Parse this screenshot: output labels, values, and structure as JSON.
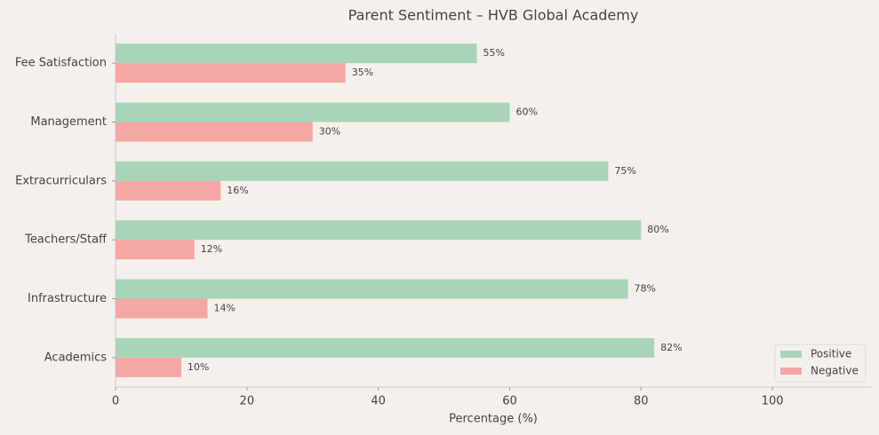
{
  "chart_data": {
    "type": "barh",
    "title": "Parent Sentiment – HVB Global Academy",
    "xlabel": "Percentage (%)",
    "categories": [
      "Academics",
      "Infrastructure",
      "Teachers/Staff",
      "Extracurriculars",
      "Management",
      "Fee Satisfaction"
    ],
    "series": [
      {
        "name": "Positive",
        "color": "#a8d5ba",
        "values": [
          82,
          78,
          80,
          75,
          60,
          55
        ],
        "value_labels": [
          "82%",
          "78%",
          "80%",
          "75%",
          "60%",
          "55%"
        ]
      },
      {
        "name": "Negative",
        "color": "#f4a7a3",
        "values": [
          10,
          14,
          12,
          16,
          30,
          35
        ],
        "value_labels": [
          "10%",
          "14%",
          "12%",
          "16%",
          "30%",
          "35%"
        ]
      }
    ],
    "xlim": [
      0,
      115
    ],
    "xticks": [
      0,
      20,
      40,
      60,
      80,
      100
    ],
    "legend": "lower right"
  }
}
